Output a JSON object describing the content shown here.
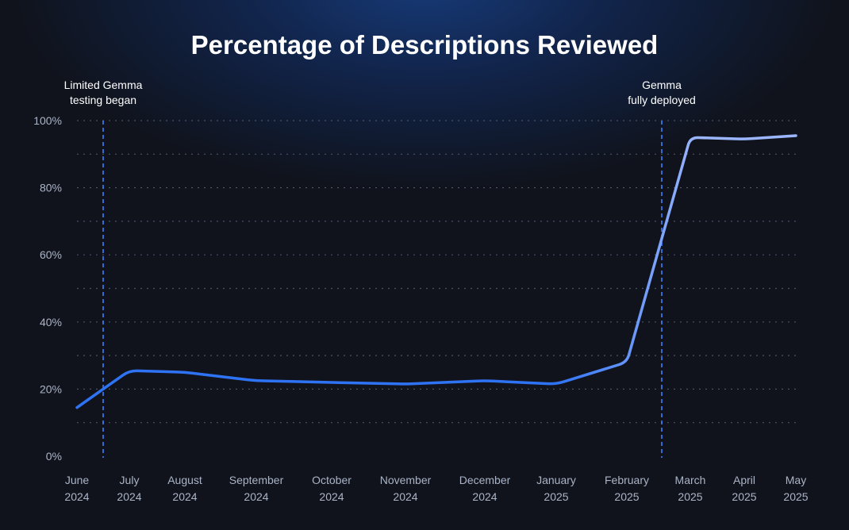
{
  "chart_data": {
    "type": "line",
    "title": "Percentage of Descriptions Reviewed",
    "xlabel": "",
    "ylabel": "",
    "ylim": [
      0,
      100
    ],
    "y_ticks": [
      "0%",
      "20%",
      "40%",
      "60%",
      "80%",
      "100%"
    ],
    "grid": true,
    "categories": [
      [
        "June",
        "2024"
      ],
      [
        "July",
        "2024"
      ],
      [
        "August",
        "2024"
      ],
      [
        "September",
        "2024"
      ],
      [
        "October",
        "2024"
      ],
      [
        "November",
        "2024"
      ],
      [
        "December",
        "2024"
      ],
      [
        "January",
        "2025"
      ],
      [
        "February",
        "2025"
      ],
      [
        "March",
        "2025"
      ],
      [
        "April",
        "2025"
      ],
      [
        "May",
        "2025"
      ]
    ],
    "series": [
      {
        "values": [
          14.5,
          25.5,
          25,
          22.5,
          22,
          21.5,
          22.5,
          21.5,
          28,
          95,
          94.5,
          95.5
        ],
        "color_start": "#2f73f5",
        "color_end": "#9bb6ff"
      }
    ],
    "annotations": [
      {
        "lines": [
          "Limited Gemma",
          "testing began"
        ],
        "x_month": 0.5,
        "color": "#3d7fff"
      },
      {
        "lines": [
          "Gemma",
          "fully deployed"
        ],
        "x_month": 8.55,
        "color": "#3d7fff"
      }
    ]
  }
}
